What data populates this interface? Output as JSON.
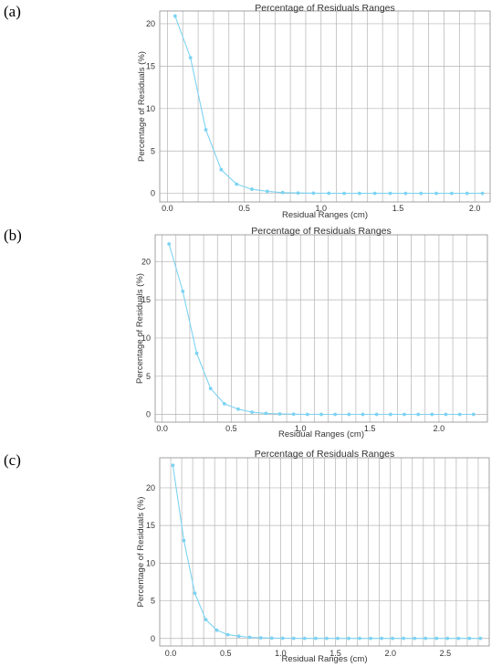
{
  "chart_data": [
    {
      "panel": "(a)",
      "type": "line",
      "title": "Percentage of Residuals Ranges",
      "xlabel": "Residual Ranges (cm)",
      "ylabel": "Percentage of Residuals (%)",
      "xlim": [
        -0.05,
        2.1
      ],
      "ylim": [
        -1,
        21.5
      ],
      "xticks": [
        0.0,
        0.5,
        1.0,
        1.5,
        2.0
      ],
      "xtick_labels": [
        "0.0",
        "0.5",
        "1.0",
        "1.5",
        "2.0"
      ],
      "yticks": [
        0,
        5,
        10,
        15,
        20
      ],
      "ytick_labels": [
        "0",
        "5",
        "10",
        "15",
        "20"
      ],
      "x_gridlines": [
        0.0,
        0.1,
        0.2,
        0.3,
        0.4,
        0.5,
        0.6,
        0.7,
        0.8,
        0.9,
        1.0,
        1.1,
        1.2,
        1.3,
        1.4,
        1.5,
        1.6,
        1.7,
        1.8,
        1.9,
        2.0
      ],
      "y_gridlines": [
        0,
        5,
        10,
        15,
        20
      ],
      "grid": true,
      "series": [
        {
          "color": "#7dd3f2",
          "x": [
            0.05,
            0.15,
            0.25,
            0.35,
            0.45,
            0.55,
            0.65,
            0.75,
            0.85,
            0.95,
            1.05,
            1.15,
            1.25,
            1.35,
            1.45,
            1.55,
            1.65,
            1.75,
            1.85,
            1.95,
            2.05
          ],
          "y": [
            20.9,
            16.0,
            7.5,
            2.8,
            1.1,
            0.5,
            0.25,
            0.1,
            0.05,
            0.03,
            0.02,
            0.01,
            0.01,
            0.01,
            0.01,
            0.01,
            0.01,
            0.01,
            0.01,
            0.01,
            0.01
          ]
        }
      ]
    },
    {
      "panel": "(b)",
      "type": "line",
      "title": "Percentage of Residuals Ranges",
      "xlabel": "Residual Ranges (cm)",
      "ylabel": "Percentage of Residuals (%)",
      "xlim": [
        -0.05,
        2.35
      ],
      "ylim": [
        -1,
        23.5
      ],
      "xticks": [
        0.0,
        0.5,
        1.0,
        1.5,
        2.0
      ],
      "xtick_labels": [
        "0.0",
        "0.5",
        "1.0",
        "1.5",
        "2.0"
      ],
      "yticks": [
        0,
        5,
        10,
        15,
        20
      ],
      "ytick_labels": [
        "0",
        "5",
        "10",
        "15",
        "20"
      ],
      "x_gridlines": [
        0.0,
        0.1,
        0.2,
        0.3,
        0.4,
        0.5,
        0.6,
        0.7,
        0.8,
        0.9,
        1.0,
        1.1,
        1.2,
        1.3,
        1.4,
        1.5,
        1.6,
        1.7,
        1.8,
        1.9,
        2.0,
        2.1,
        2.2
      ],
      "y_gridlines": [
        0,
        5,
        10,
        15,
        20
      ],
      "grid": true,
      "series": [
        {
          "color": "#7dd3f2",
          "x": [
            0.05,
            0.15,
            0.25,
            0.35,
            0.45,
            0.55,
            0.65,
            0.75,
            0.85,
            0.95,
            1.05,
            1.15,
            1.25,
            1.35,
            1.45,
            1.55,
            1.65,
            1.75,
            1.85,
            1.95,
            2.05,
            2.15,
            2.25
          ],
          "y": [
            22.3,
            16.1,
            8.0,
            3.4,
            1.4,
            0.7,
            0.3,
            0.15,
            0.08,
            0.04,
            0.02,
            0.01,
            0.01,
            0.01,
            0.01,
            0.01,
            0.01,
            0.01,
            0.01,
            0.01,
            0.01,
            0.01,
            0.01
          ]
        }
      ]
    },
    {
      "panel": "(c)",
      "type": "line",
      "title": "Percentage of Residuals Ranges",
      "xlabel": "Residual Ranges (cm)",
      "ylabel": "Percentage of Residuals (%)",
      "xlim": [
        -0.1,
        2.9
      ],
      "ylim": [
        -1,
        24
      ],
      "xticks": [
        0.0,
        0.5,
        1.0,
        1.5,
        2.0,
        2.5
      ],
      "xtick_labels": [
        "0.0",
        "0.5",
        "1.0",
        "1.5",
        "2.0",
        "2.5"
      ],
      "yticks": [
        0,
        5,
        10,
        15,
        20
      ],
      "ytick_labels": [
        "0",
        "5",
        "10",
        "15",
        "20"
      ],
      "x_gridlines": [
        0.0,
        0.1,
        0.2,
        0.3,
        0.4,
        0.5,
        0.6,
        0.7,
        0.8,
        0.9,
        1.0,
        1.1,
        1.2,
        1.3,
        1.4,
        1.5,
        1.6,
        1.7,
        1.8,
        1.9,
        2.0,
        2.1,
        2.2,
        2.3,
        2.4,
        2.5,
        2.6,
        2.7,
        2.8
      ],
      "y_gridlines": [
        0,
        5,
        10,
        15,
        20
      ],
      "grid": true,
      "series": [
        {
          "color": "#7dd3f2",
          "x": [
            0.02,
            0.12,
            0.22,
            0.32,
            0.42,
            0.52,
            0.62,
            0.72,
            0.82,
            0.92,
            1.02,
            1.12,
            1.22,
            1.32,
            1.42,
            1.52,
            1.62,
            1.72,
            1.82,
            1.92,
            2.02,
            2.12,
            2.22,
            2.32,
            2.42,
            2.52,
            2.62,
            2.72,
            2.82
          ],
          "y": [
            23.0,
            13.0,
            6.0,
            2.5,
            1.1,
            0.5,
            0.3,
            0.15,
            0.08,
            0.05,
            0.03,
            0.02,
            0.01,
            0.01,
            0.01,
            0.01,
            0.01,
            0.01,
            0.01,
            0.01,
            0.01,
            0.01,
            0.01,
            0.01,
            0.01,
            0.01,
            0.01,
            0.01,
            0.01
          ]
        }
      ]
    }
  ]
}
